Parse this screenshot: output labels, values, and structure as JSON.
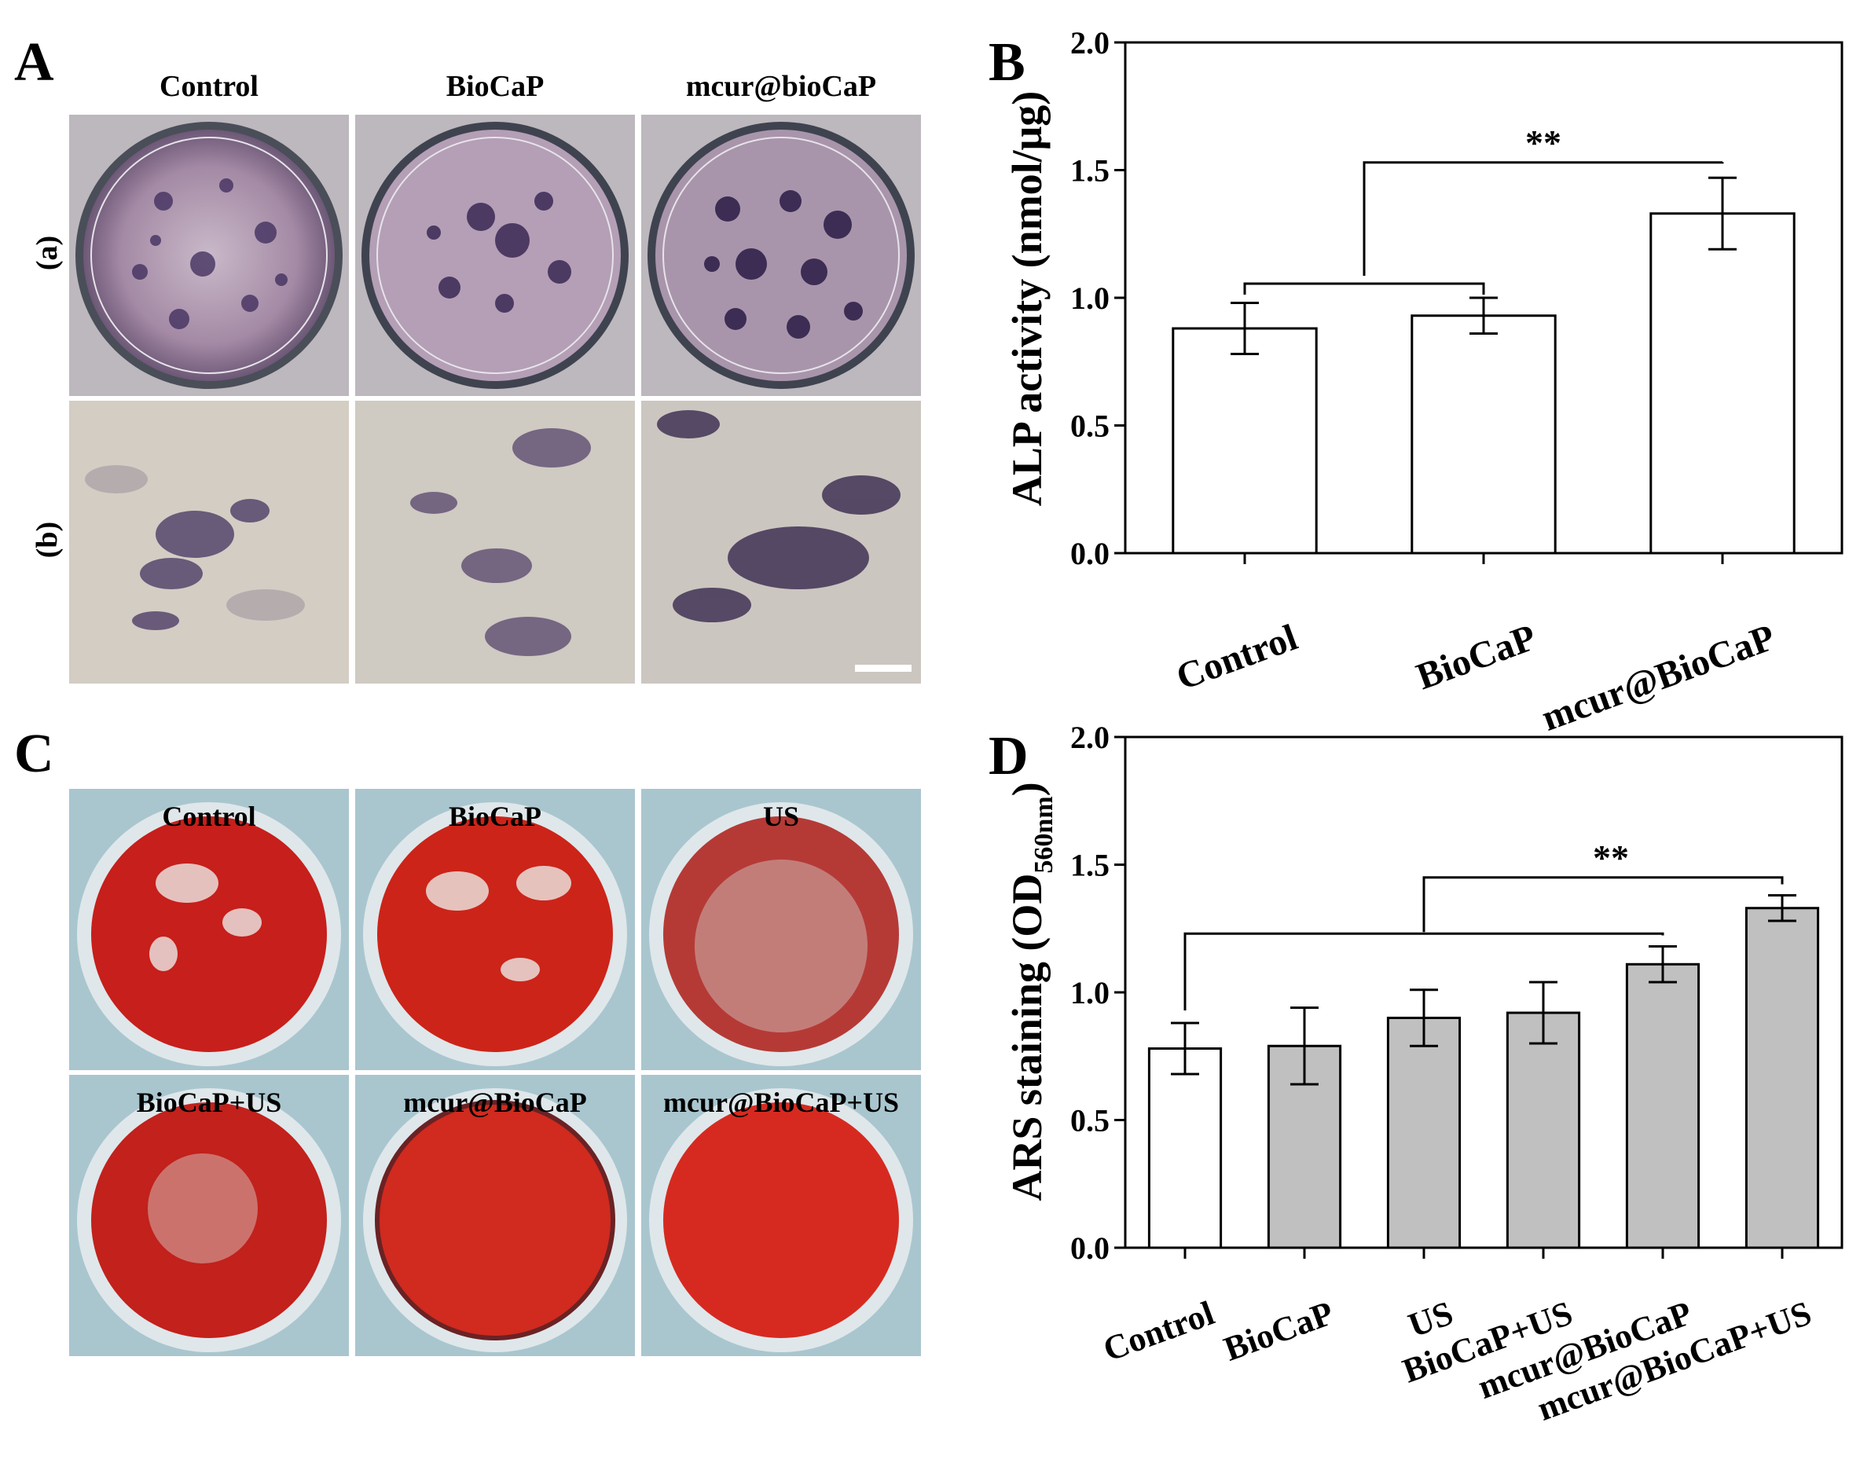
{
  "panel_a": {
    "letter": "A",
    "columns": [
      "Control",
      "BioCaP",
      "mcur@bioCaP"
    ],
    "rows": [
      "(a)",
      "(b)"
    ]
  },
  "panel_c": {
    "letter": "C",
    "plates": [
      "Control",
      "BioCaP",
      "US",
      "BioCaP+US",
      "mcur@BioCaP",
      "mcur@BioCaP+US"
    ]
  },
  "colors": {
    "open_bar": "#ffffff",
    "gray_bar": "#c0c0c0",
    "alp_stain": "#3c2a5a",
    "ars_stain": "#d42a1e"
  },
  "chart_data": [
    {
      "panel": "B",
      "type": "bar",
      "ylabel": "ALP activity (nmol/μg)",
      "categories": [
        "Control",
        "BioCaP",
        "mcur@BioCaP"
      ],
      "values": [
        0.88,
        0.93,
        1.33
      ],
      "errors": [
        0.1,
        0.07,
        0.14
      ],
      "bar_fills": [
        "#ffffff",
        "#ffffff",
        "#ffffff"
      ],
      "ylim": [
        0,
        2.0
      ],
      "yticks": [
        "0.0",
        "0.5",
        "1.0",
        "1.5",
        "2.0"
      ],
      "significance": {
        "label": "**"
      }
    },
    {
      "panel": "D",
      "type": "bar",
      "ylabel": "ARS staining (OD",
      "ylabel_sub": "560nm",
      "ylabel_end": ")",
      "categories": [
        "Control",
        "BioCaP",
        "US",
        "BioCaP+US",
        "mcur@BioCaP",
        "mcur@BioCaP+US"
      ],
      "values": [
        0.78,
        0.79,
        0.9,
        0.92,
        1.11,
        1.33
      ],
      "errors": [
        0.1,
        0.15,
        0.11,
        0.12,
        0.07,
        0.05
      ],
      "bar_fills": [
        "#ffffff",
        "#c0c0c0",
        "#c0c0c0",
        "#c0c0c0",
        "#c0c0c0",
        "#c0c0c0"
      ],
      "ylim": [
        0,
        2.0
      ],
      "yticks": [
        "0.0",
        "0.5",
        "1.0",
        "1.5",
        "2.0"
      ],
      "significance": {
        "label": "**"
      }
    }
  ]
}
